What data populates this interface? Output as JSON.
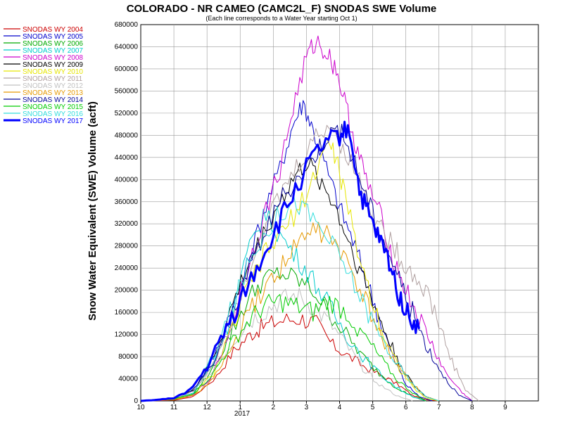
{
  "chart_data": {
    "type": "line",
    "title": "COLORADO - NR CAMEO (CAMC2L_F) SNODAS SWE Volume",
    "subtitle": "(Each line corresponds to a Water Year starting Oct 1)",
    "ylabel": "Snow Water Equivalent (SWE) Volume (acft)",
    "xlabel": "",
    "ylim": [
      0,
      680000
    ],
    "xlim": [
      10,
      10.95
    ],
    "yticks": [
      "0",
      "40000",
      "80000",
      "120000",
      "160000",
      "200000",
      "240000",
      "280000",
      "320000",
      "360000",
      "400000",
      "440000",
      "480000",
      "520000",
      "560000",
      "600000",
      "640000",
      "680000"
    ],
    "xticks": [
      "10",
      "11",
      "12",
      "1",
      "2",
      "3",
      "4",
      "5",
      "6",
      "7",
      "8",
      "9"
    ],
    "xticks_sub": "2017",
    "grid": true,
    "legend_position": "left",
    "x_units": "months since Oct 1",
    "series": [
      {
        "name": "SNODAS WY 2004",
        "color": "#cc0000",
        "bold": false,
        "points": [
          [
            0,
            0
          ],
          [
            1,
            1000
          ],
          [
            1.6,
            8000
          ],
          [
            2.3,
            45000
          ],
          [
            2.8,
            90000
          ],
          [
            3.3,
            120000
          ],
          [
            3.7,
            135000
          ],
          [
            4.2,
            145000
          ],
          [
            4.8,
            150000
          ],
          [
            5.3,
            140000
          ],
          [
            5.8,
            100000
          ],
          [
            6.3,
            80000
          ],
          [
            6.8,
            60000
          ],
          [
            7.3,
            45000
          ],
          [
            7.8,
            28000
          ],
          [
            8.2,
            10000
          ],
          [
            8.6,
            2000
          ],
          [
            9,
            0
          ]
        ]
      },
      {
        "name": "SNODAS WY 2005",
        "color": "#0000cc",
        "bold": false,
        "points": [
          [
            0,
            0
          ],
          [
            1,
            5000
          ],
          [
            1.6,
            20000
          ],
          [
            2.2,
            80000
          ],
          [
            2.7,
            150000
          ],
          [
            3.2,
            240000
          ],
          [
            3.7,
            340000
          ],
          [
            4.2,
            420000
          ],
          [
            4.6,
            500000
          ],
          [
            4.9,
            540000
          ],
          [
            5.2,
            490000
          ],
          [
            5.6,
            420000
          ],
          [
            6,
            350000
          ],
          [
            6.4,
            290000
          ],
          [
            6.8,
            220000
          ],
          [
            7.2,
            150000
          ],
          [
            7.6,
            80000
          ],
          [
            8,
            30000
          ],
          [
            8.4,
            8000
          ],
          [
            8.8,
            0
          ]
        ]
      },
      {
        "name": "SNODAS WY 2006",
        "color": "#00aa00",
        "bold": false,
        "points": [
          [
            0,
            0
          ],
          [
            1,
            2000
          ],
          [
            1.6,
            12000
          ],
          [
            2.2,
            60000
          ],
          [
            2.7,
            120000
          ],
          [
            3.2,
            180000
          ],
          [
            3.7,
            220000
          ],
          [
            4.2,
            230000
          ],
          [
            4.7,
            220000
          ],
          [
            5.2,
            200000
          ],
          [
            5.7,
            160000
          ],
          [
            6.2,
            120000
          ],
          [
            6.7,
            80000
          ],
          [
            7.2,
            50000
          ],
          [
            7.7,
            25000
          ],
          [
            8.2,
            8000
          ],
          [
            8.6,
            0
          ]
        ]
      },
      {
        "name": "SNODAS WY 2007",
        "color": "#00cccc",
        "bold": false,
        "points": [
          [
            0,
            0
          ],
          [
            1,
            3000
          ],
          [
            1.6,
            15000
          ],
          [
            2.2,
            70000
          ],
          [
            2.7,
            150000
          ],
          [
            3.2,
            260000
          ],
          [
            3.7,
            340000
          ],
          [
            4.2,
            300000
          ],
          [
            4.7,
            260000
          ],
          [
            5.2,
            220000
          ],
          [
            5.7,
            170000
          ],
          [
            6.2,
            120000
          ],
          [
            6.7,
            80000
          ],
          [
            7.2,
            50000
          ],
          [
            7.7,
            25000
          ],
          [
            8.2,
            8000
          ],
          [
            8.6,
            0
          ]
        ]
      },
      {
        "name": "SNODAS WY 2008",
        "color": "#cc00cc",
        "bold": false,
        "points": [
          [
            0,
            0
          ],
          [
            1,
            2000
          ],
          [
            1.6,
            10000
          ],
          [
            2.2,
            50000
          ],
          [
            2.7,
            130000
          ],
          [
            3.2,
            240000
          ],
          [
            3.7,
            330000
          ],
          [
            4.2,
            420000
          ],
          [
            4.6,
            530000
          ],
          [
            5,
            620000
          ],
          [
            5.3,
            650000
          ],
          [
            5.6,
            630000
          ],
          [
            5.9,
            600000
          ],
          [
            6.2,
            530000
          ],
          [
            6.5,
            460000
          ],
          [
            6.8,
            400000
          ],
          [
            7.2,
            340000
          ],
          [
            7.6,
            260000
          ],
          [
            8,
            200000
          ],
          [
            8.4,
            150000
          ],
          [
            8.8,
            100000
          ],
          [
            9.2,
            50000
          ],
          [
            9.7,
            15000
          ],
          [
            10,
            0
          ]
        ]
      },
      {
        "name": "SNODAS WY 2009",
        "color": "#000000",
        "bold": false,
        "points": [
          [
            0,
            0
          ],
          [
            1,
            4000
          ],
          [
            1.6,
            20000
          ],
          [
            2.2,
            80000
          ],
          [
            2.7,
            160000
          ],
          [
            3.2,
            240000
          ],
          [
            3.7,
            300000
          ],
          [
            4.2,
            360000
          ],
          [
            4.6,
            400000
          ],
          [
            5,
            430000
          ],
          [
            5.4,
            400000
          ],
          [
            5.8,
            360000
          ],
          [
            6.2,
            300000
          ],
          [
            6.6,
            240000
          ],
          [
            7,
            180000
          ],
          [
            7.4,
            120000
          ],
          [
            7.8,
            70000
          ],
          [
            8.2,
            30000
          ],
          [
            8.6,
            8000
          ],
          [
            9,
            0
          ]
        ]
      },
      {
        "name": "SNODAS WY 2010",
        "color": "#e6e600",
        "bold": false,
        "points": [
          [
            0,
            0
          ],
          [
            1,
            2000
          ],
          [
            1.6,
            12000
          ],
          [
            2.2,
            50000
          ],
          [
            2.7,
            120000
          ],
          [
            3.2,
            200000
          ],
          [
            3.7,
            260000
          ],
          [
            4.2,
            300000
          ],
          [
            4.7,
            340000
          ],
          [
            5.2,
            400000
          ],
          [
            5.6,
            470000
          ],
          [
            5.9,
            440000
          ],
          [
            6.2,
            360000
          ],
          [
            6.6,
            260000
          ],
          [
            7,
            180000
          ],
          [
            7.4,
            110000
          ],
          [
            7.8,
            60000
          ],
          [
            8.2,
            25000
          ],
          [
            8.6,
            5000
          ],
          [
            9,
            0
          ]
        ]
      },
      {
        "name": "SNODAS WY 2011",
        "color": "#b0a0a0",
        "bold": false,
        "points": [
          [
            0,
            0
          ],
          [
            1,
            3000
          ],
          [
            1.6,
            18000
          ],
          [
            2.2,
            70000
          ],
          [
            2.7,
            140000
          ],
          [
            3.2,
            230000
          ],
          [
            3.7,
            310000
          ],
          [
            4.2,
            370000
          ],
          [
            4.7,
            420000
          ],
          [
            5.2,
            470000
          ],
          [
            5.7,
            500000
          ],
          [
            6.1,
            460000
          ],
          [
            6.6,
            400000
          ],
          [
            7,
            340000
          ],
          [
            7.4,
            300000
          ],
          [
            7.8,
            260000
          ],
          [
            8.2,
            230000
          ],
          [
            8.6,
            200000
          ],
          [
            9,
            140000
          ],
          [
            9.4,
            70000
          ],
          [
            9.8,
            20000
          ],
          [
            10.2,
            0
          ]
        ]
      },
      {
        "name": "SNODAS WY 2012",
        "color": "#c0c0c0",
        "bold": false,
        "points": [
          [
            0,
            0
          ],
          [
            1,
            4000
          ],
          [
            1.6,
            20000
          ],
          [
            2.2,
            60000
          ],
          [
            2.7,
            100000
          ],
          [
            3.2,
            140000
          ],
          [
            3.7,
            160000
          ],
          [
            4.2,
            180000
          ],
          [
            4.7,
            190000
          ],
          [
            5.2,
            170000
          ],
          [
            5.7,
            140000
          ],
          [
            6.2,
            100000
          ],
          [
            6.7,
            60000
          ],
          [
            7.2,
            30000
          ],
          [
            7.7,
            10000
          ],
          [
            8.2,
            0
          ]
        ]
      },
      {
        "name": "SNODAS WY 2013",
        "color": "#e69900",
        "bold": false,
        "points": [
          [
            0,
            0
          ],
          [
            1,
            2000
          ],
          [
            1.6,
            10000
          ],
          [
            2.2,
            40000
          ],
          [
            2.7,
            90000
          ],
          [
            3.2,
            150000
          ],
          [
            3.7,
            200000
          ],
          [
            4.2,
            240000
          ],
          [
            4.7,
            280000
          ],
          [
            5.2,
            310000
          ],
          [
            5.7,
            300000
          ],
          [
            6.2,
            250000
          ],
          [
            6.7,
            190000
          ],
          [
            7.2,
            120000
          ],
          [
            7.7,
            70000
          ],
          [
            8.2,
            30000
          ],
          [
            8.6,
            8000
          ],
          [
            9,
            0
          ]
        ]
      },
      {
        "name": "SNODAS WY 2014",
        "color": "#000099",
        "bold": false,
        "points": [
          [
            0,
            0
          ],
          [
            1,
            4000
          ],
          [
            1.6,
            22000
          ],
          [
            2.2,
            70000
          ],
          [
            2.7,
            150000
          ],
          [
            3.2,
            230000
          ],
          [
            3.7,
            300000
          ],
          [
            4.2,
            360000
          ],
          [
            4.7,
            400000
          ],
          [
            5.2,
            440000
          ],
          [
            5.6,
            480000
          ],
          [
            6,
            490000
          ],
          [
            6.4,
            440000
          ],
          [
            6.8,
            370000
          ],
          [
            7.2,
            310000
          ],
          [
            7.6,
            250000
          ],
          [
            8,
            190000
          ],
          [
            8.4,
            130000
          ],
          [
            8.8,
            80000
          ],
          [
            9.2,
            40000
          ],
          [
            9.6,
            10000
          ],
          [
            10,
            0
          ]
        ]
      },
      {
        "name": "SNODAS WY 2015",
        "color": "#00cc00",
        "bold": false,
        "points": [
          [
            0,
            0
          ],
          [
            1,
            3000
          ],
          [
            1.6,
            14000
          ],
          [
            2.2,
            50000
          ],
          [
            2.7,
            100000
          ],
          [
            3.2,
            140000
          ],
          [
            3.7,
            170000
          ],
          [
            4.2,
            180000
          ],
          [
            4.7,
            170000
          ],
          [
            5.2,
            160000
          ],
          [
            5.7,
            180000
          ],
          [
            6.2,
            160000
          ],
          [
            6.7,
            120000
          ],
          [
            7.2,
            80000
          ],
          [
            7.7,
            40000
          ],
          [
            8.2,
            15000
          ],
          [
            8.6,
            0
          ]
        ]
      },
      {
        "name": "SNODAS WY 2016",
        "color": "#33dddd",
        "bold": false,
        "points": [
          [
            0,
            0
          ],
          [
            1,
            4000
          ],
          [
            1.6,
            25000
          ],
          [
            2.2,
            80000
          ],
          [
            2.7,
            160000
          ],
          [
            3.2,
            240000
          ],
          [
            3.7,
            300000
          ],
          [
            4.2,
            340000
          ],
          [
            4.7,
            360000
          ],
          [
            5.2,
            330000
          ],
          [
            5.7,
            290000
          ],
          [
            6.2,
            240000
          ],
          [
            6.7,
            180000
          ],
          [
            7.2,
            120000
          ],
          [
            7.7,
            70000
          ],
          [
            8.2,
            30000
          ],
          [
            8.6,
            8000
          ],
          [
            9,
            0
          ]
        ]
      },
      {
        "name": "SNODAS WY 2017",
        "color": "#0000ff",
        "bold": true,
        "points": [
          [
            0,
            0
          ],
          [
            0.5,
            2000
          ],
          [
            1,
            5000
          ],
          [
            1.5,
            20000
          ],
          [
            2,
            60000
          ],
          [
            2.5,
            120000
          ],
          [
            3,
            180000
          ],
          [
            3.5,
            240000
          ],
          [
            4,
            300000
          ],
          [
            4.5,
            360000
          ],
          [
            5,
            420000
          ],
          [
            5.5,
            460000
          ],
          [
            6,
            480000
          ],
          [
            6.3,
            490000
          ],
          [
            6.6,
            380000
          ],
          [
            6.9,
            330000
          ],
          [
            7.2,
            290000
          ],
          [
            7.5,
            250000
          ],
          [
            7.8,
            190000
          ],
          [
            8.1,
            150000
          ],
          [
            8.4,
            130000
          ]
        ]
      }
    ]
  }
}
